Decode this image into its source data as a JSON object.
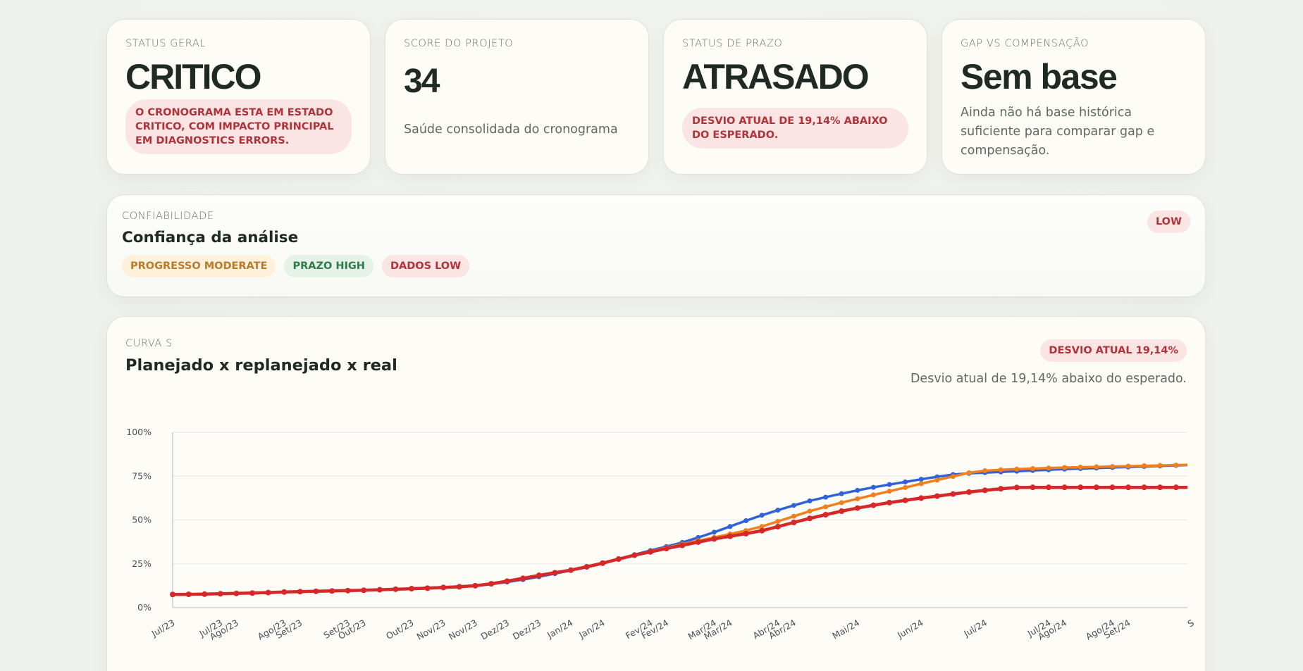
{
  "kpis": [
    {
      "label": "STATUS GERAL",
      "value": "CRITICO",
      "pill": "O CRONOGRAMA ESTA EM ESTADO CRITICO, COM IMPACTO PRINCIPAL EM DIAGNOSTICS ERRORS."
    },
    {
      "label": "SCORE DO PROJETO",
      "value": "34",
      "desc": "Saúde consolidada do cronograma"
    },
    {
      "label": "STATUS DE PRAZO",
      "value": "ATRASADO",
      "pill": "DESVIO ATUAL DE 19,14% ABAIXO DO ESPERADO."
    },
    {
      "label": "GAP VS COMPENSAÇÃO",
      "value": "Sem base",
      "desc": "Ainda não há base histórica suficiente para comparar gap e compensação."
    }
  ],
  "confidence": {
    "label": "CONFIABILIDADE",
    "title": "Confiança da análise",
    "badge": "LOW",
    "chips": [
      {
        "label": "PROGRESSO MODERATE",
        "tone": "amber"
      },
      {
        "label": "PRAZO HIGH",
        "tone": "green"
      },
      {
        "label": "DADOS LOW",
        "tone": "red"
      }
    ]
  },
  "curve": {
    "label": "CURVA S",
    "title": "Planejado x replanejado x real",
    "badge": "DESVIO ATUAL 19,14%",
    "subtitle": "Desvio atual de 19,14% abaixo do esperado."
  },
  "colors": {
    "planned": "#2f62d9",
    "replanned": "#f07f1c",
    "real": "#d62828",
    "grid": "#e6e9ec",
    "axis": "#c9ced6",
    "tick": "#4a4f57"
  },
  "chart_data": {
    "type": "line",
    "title": "Planejado x replanejado x real",
    "xlabel": "",
    "ylabel": "",
    "ylim": [
      0,
      100
    ],
    "yticks": [
      "0%",
      "25%",
      "50%",
      "75%",
      "100%"
    ],
    "grid": true,
    "legend": "none",
    "x_tick_labels": [
      {
        "i": 0,
        "label": "Jul/23"
      },
      {
        "i": 3,
        "label": "Jul/23"
      },
      {
        "i": 4,
        "label": "Ago/23"
      },
      {
        "i": 7,
        "label": "Ago/23"
      },
      {
        "i": 8,
        "label": "Set/23"
      },
      {
        "i": 11,
        "label": "Set/23"
      },
      {
        "i": 12,
        "label": "Out/23"
      },
      {
        "i": 15,
        "label": "Out/23"
      },
      {
        "i": 17,
        "label": "Nov/23"
      },
      {
        "i": 19,
        "label": "Nov/23"
      },
      {
        "i": 21,
        "label": "Dez/23"
      },
      {
        "i": 23,
        "label": "Dez/23"
      },
      {
        "i": 25,
        "label": "Jan/24"
      },
      {
        "i": 27,
        "label": "Jan/24"
      },
      {
        "i": 30,
        "label": "Fev/24"
      },
      {
        "i": 31,
        "label": "Fev/24"
      },
      {
        "i": 34,
        "label": "Mar/24"
      },
      {
        "i": 35,
        "label": "Mar/24"
      },
      {
        "i": 38,
        "label": "Abr/24"
      },
      {
        "i": 39,
        "label": "Abr/24"
      },
      {
        "i": 43,
        "label": "Mai/24"
      },
      {
        "i": 47,
        "label": "Jun/24"
      },
      {
        "i": 51,
        "label": "Jul/24"
      },
      {
        "i": 55,
        "label": "Jul/24"
      },
      {
        "i": 56,
        "label": "Ago/24"
      },
      {
        "i": 59,
        "label": "Ago/24"
      },
      {
        "i": 60,
        "label": "Set/24"
      },
      {
        "i": 64,
        "label": "S"
      }
    ],
    "series": [
      {
        "name": "Planejado",
        "values": [
          7.5,
          7.6,
          7.7,
          7.9,
          8.1,
          8.3,
          8.6,
          8.9,
          9.1,
          9.3,
          9.5,
          9.7,
          9.9,
          10.2,
          10.5,
          10.9,
          11.3,
          11.7,
          12.1,
          12.6,
          13.4,
          14.6,
          16.0,
          17.6,
          19.4,
          21.2,
          23.1,
          25.2,
          27.7,
          30.2,
          32.6,
          34.8,
          37.2,
          40.0,
          43.0,
          46.3,
          49.6,
          52.7,
          55.6,
          58.3,
          60.9,
          63.0,
          65.0,
          66.9,
          68.6,
          70.2,
          71.7,
          73.2,
          74.6,
          75.9,
          76.6,
          77.0,
          77.4,
          77.8,
          78.2,
          78.6,
          79.0,
          79.3,
          79.6,
          79.9,
          80.2,
          80.5,
          80.8,
          81.1,
          81.4
        ]
      },
      {
        "name": "Replanejado",
        "values": [
          7.5,
          7.6,
          7.7,
          7.9,
          8.1,
          8.3,
          8.6,
          8.9,
          9.1,
          9.3,
          9.5,
          9.7,
          9.9,
          10.2,
          10.5,
          10.8,
          11.1,
          11.5,
          11.9,
          12.5,
          13.5,
          15.0,
          16.6,
          18.2,
          19.8,
          21.4,
          23.3,
          25.4,
          27.8,
          30.0,
          32.1,
          34.2,
          36.2,
          38.2,
          40.0,
          42.0,
          44.0,
          46.3,
          49.2,
          52.1,
          55.0,
          57.5,
          59.9,
          62.1,
          64.3,
          66.4,
          68.5,
          70.7,
          72.8,
          74.8,
          76.9,
          78.1,
          78.6,
          79.0,
          79.3,
          79.6,
          79.9,
          80.1,
          80.3,
          80.5,
          80.7,
          80.9,
          81.1,
          81.3,
          81.5
        ]
      },
      {
        "name": "Real",
        "values": [
          7.5,
          7.6,
          7.7,
          7.9,
          8.1,
          8.3,
          8.6,
          8.9,
          9.1,
          9.3,
          9.5,
          9.7,
          9.9,
          10.2,
          10.5,
          10.8,
          11.1,
          11.5,
          11.9,
          12.5,
          13.6,
          15.1,
          16.7,
          18.4,
          19.9,
          21.4,
          23.3,
          25.4,
          27.7,
          29.9,
          31.8,
          33.7,
          35.5,
          37.4,
          39.2,
          40.7,
          42.2,
          43.9,
          46.2,
          48.6,
          50.9,
          53.0,
          55.0,
          56.8,
          58.4,
          59.9,
          61.2,
          62.5,
          63.6,
          64.8,
          65.9,
          66.9,
          67.8,
          68.5,
          68.6,
          68.6,
          68.6,
          68.6,
          68.6,
          68.6,
          68.6,
          68.6,
          68.6,
          68.6,
          68.6
        ]
      }
    ]
  }
}
